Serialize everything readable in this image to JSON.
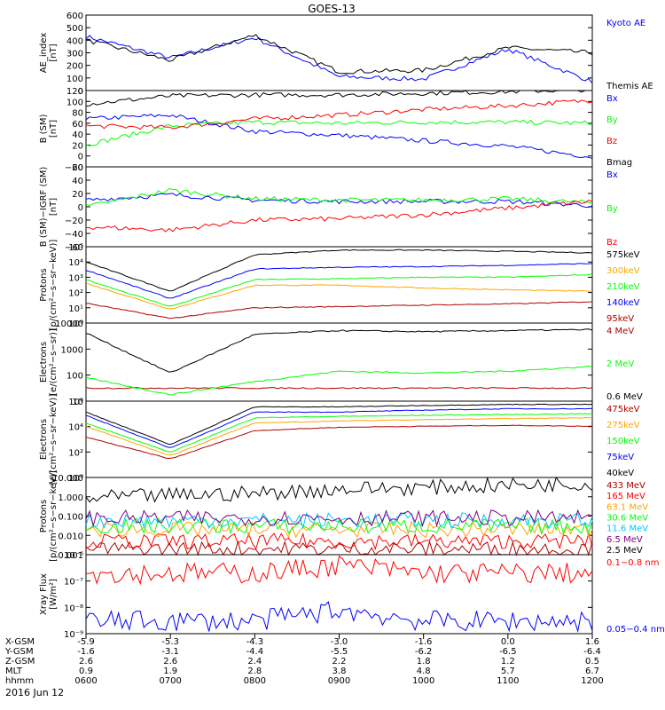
{
  "title": "GOES-13",
  "x_axis": {
    "rows": [
      {
        "label": "X-GSM",
        "values": [
          "-5.9",
          "-5.3",
          "-4.3",
          "-3.0",
          "-1.6",
          "0.0",
          "1.6"
        ]
      },
      {
        "label": "Y-GSM",
        "values": [
          "-1.6",
          "-3.1",
          "-4.4",
          "-5.5",
          "-6.2",
          "-6.5",
          "-6.4"
        ]
      },
      {
        "label": "Z-GSM",
        "values": [
          "2.6",
          "2.6",
          "2.4",
          "2.2",
          "1.8",
          "1.2",
          "0.5"
        ]
      },
      {
        "label": "MLT",
        "values": [
          "0.9",
          "1.9",
          "2.8",
          "3.8",
          "4.8",
          "5.7",
          "6.7"
        ]
      },
      {
        "label": "hhmm",
        "values": [
          "0600",
          "0700",
          "0800",
          "0900",
          "1000",
          "1100",
          "1200"
        ]
      }
    ],
    "date": "2016 Jun 12"
  },
  "colors": {
    "black": "#000000",
    "blue": "#0000ff",
    "green": "#00ff00",
    "red": "#ff0000",
    "darkred": "#b00000",
    "orange": "#ffa500",
    "cyan": "#00c8ff",
    "purple": "#800080"
  },
  "chart_data": [
    {
      "type": "line",
      "ylabel": "AE_index\n[nT]",
      "ylim": [
        0,
        600
      ],
      "yticks": [
        "0",
        "100",
        "200",
        "300",
        "400",
        "500",
        "600"
      ],
      "x": [
        "0600",
        "0700",
        "0800",
        "0900",
        "1000",
        "1100",
        "1200"
      ],
      "series": [
        {
          "name": "Kyoto AE",
          "color": "blue",
          "values": [
            430,
            260,
            420,
            110,
            90,
            330,
            70
          ]
        },
        {
          "name": "Themis AE",
          "color": "black",
          "values": [
            400,
            240,
            440,
            150,
            160,
            340,
            300
          ]
        }
      ]
    },
    {
      "type": "line",
      "ylabel": "B (SM)\n[nT]",
      "ylim": [
        -20,
        120
      ],
      "yticks": [
        "−20",
        "0",
        "20",
        "40",
        "60",
        "80",
        "100",
        "120"
      ],
      "x": [
        "0600",
        "0700",
        "0800",
        "0900",
        "1000",
        "1100",
        "1200"
      ],
      "series": [
        {
          "name": "Bx",
          "color": "blue",
          "values": [
            68,
            75,
            45,
            38,
            28,
            18,
            -2
          ]
        },
        {
          "name": "By",
          "color": "green",
          "values": [
            20,
            55,
            62,
            60,
            62,
            62,
            60
          ]
        },
        {
          "name": "Bz",
          "color": "red",
          "values": [
            55,
            52,
            68,
            75,
            85,
            92,
            102
          ]
        },
        {
          "name": "Bmag",
          "color": "black",
          "values": [
            95,
            110,
            112,
            112,
            115,
            118,
            122
          ]
        }
      ]
    },
    {
      "type": "line",
      "ylabel": "B (SM)−IGRF (SM)\n[nT]",
      "ylim": [
        -60,
        60
      ],
      "yticks": [
        "−60",
        "−40",
        "−20",
        "0",
        "20",
        "40",
        "60"
      ],
      "x": [
        "0600",
        "0700",
        "0800",
        "0900",
        "1000",
        "1100",
        "1200"
      ],
      "series": [
        {
          "name": "Bx",
          "color": "blue",
          "values": [
            10,
            18,
            10,
            8,
            8,
            8,
            2
          ]
        },
        {
          "name": "By",
          "color": "green",
          "values": [
            0,
            25,
            12,
            10,
            10,
            12,
            6
          ]
        },
        {
          "name": "Bz",
          "color": "red",
          "values": [
            -30,
            -35,
            -20,
            -18,
            -12,
            -2,
            8
          ]
        }
      ]
    },
    {
      "type": "line",
      "scale": "log",
      "ylabel": "Protons\n[p/(cm²−s−sr−keV)]",
      "ylim": [
        1,
        100000
      ],
      "yticks": [
        "10⁰",
        "10¹",
        "10²",
        "10³",
        "10⁴",
        "10⁵"
      ],
      "x": [
        "0600",
        "0700",
        "0800",
        "0900",
        "1000",
        "1100",
        "1200"
      ],
      "series": [
        {
          "name": "575keV",
          "color": "black",
          "values": [
            10000,
            120,
            30000,
            60000,
            60000,
            50000,
            40000
          ]
        },
        {
          "name": "300keV",
          "color": "orange",
          "values": [
            400,
            8,
            300,
            300,
            200,
            150,
            120
          ]
        },
        {
          "name": "210keV",
          "color": "green",
          "values": [
            700,
            12,
            700,
            800,
            1000,
            1000,
            1500
          ]
        },
        {
          "name": "140keV",
          "color": "blue",
          "values": [
            3000,
            40,
            3500,
            4500,
            5000,
            6000,
            8000
          ]
        },
        {
          "name": "95keV",
          "color": "darkred",
          "values": [
            20,
            2,
            10,
            12,
            15,
            18,
            25
          ]
        }
      ]
    },
    {
      "type": "line",
      "scale": "log",
      "ylabel": "Electrons\n[e/(cm²−s−sr)]",
      "ylim": [
        5,
        20000
      ],
      "yticks": [
        "10",
        "100",
        "1000",
        "10000"
      ],
      "x": [
        "0600",
        "0700",
        "0800",
        "0900",
        "1000",
        "1100",
        "1200"
      ],
      "series": [
        {
          "name": "4 MeV",
          "color": "darkred",
          "values": [
            20,
            20,
            20,
            20,
            20,
            20,
            20
          ]
        },
        {
          "name": "2 MeV",
          "color": "green",
          "values": [
            60,
            10,
            40,
            120,
            100,
            120,
            200
          ]
        },
        {
          "name": "0.6 MeV",
          "color": "black",
          "values": [
            7000,
            100,
            6000,
            9000,
            8000,
            9000,
            10000
          ]
        }
      ]
    },
    {
      "type": "line",
      "scale": "log",
      "ylabel": "Electrons\n[e/(cm²−s−sr−keV)]",
      "ylim": [
        1,
        10000000
      ],
      "yticks": [
        "10⁰",
        "10²",
        "10⁴",
        "10⁶"
      ],
      "x": [
        "0600",
        "0700",
        "0800",
        "0900",
        "1000",
        "1100",
        "1200"
      ],
      "series": [
        {
          "name": "475keV",
          "color": "darkred",
          "values": [
            5000,
            50,
            20000,
            40000,
            50000,
            60000,
            50000
          ]
        },
        {
          "name": "275keV",
          "color": "orange",
          "values": [
            50000,
            100,
            100000,
            150000,
            200000,
            250000,
            300000
          ]
        },
        {
          "name": "150keV",
          "color": "green",
          "values": [
            100000,
            200,
            300000,
            400000,
            500000,
            600000,
            700000
          ]
        },
        {
          "name": "75keV",
          "color": "blue",
          "values": [
            500000,
            500,
            1000000,
            1000000,
            1500000,
            2000000,
            2000000
          ]
        },
        {
          "name": "40keV",
          "color": "black",
          "values": [
            1000000,
            1000,
            3000000,
            3000000,
            4000000,
            5000000,
            5000000
          ]
        }
      ]
    },
    {
      "type": "line",
      "scale": "log",
      "ylabel": "Protons\n[p/(cm²−s−sr−keV)]",
      "ylim": [
        0.001,
        10
      ],
      "yticks": [
        "0.001",
        "0.010",
        "0.100",
        "1.000",
        "10.000"
      ],
      "x": [
        "0600",
        "0700",
        "0800",
        "0900",
        "1000",
        "1100",
        "1200"
      ],
      "series": [
        {
          "name": "433 MeV",
          "color": "darkred",
          "values": [
            0.002,
            0.002,
            0.002,
            0.002,
            0.002,
            0.002,
            0.002
          ]
        },
        {
          "name": "165 MeV",
          "color": "red",
          "values": [
            0.005,
            0.005,
            0.005,
            0.005,
            0.005,
            0.005,
            0.005
          ]
        },
        {
          "name": "63.1 MeV",
          "color": "orange",
          "values": [
            0.02,
            0.02,
            0.02,
            0.02,
            0.02,
            0.02,
            0.02
          ]
        },
        {
          "name": "30.6 MeV",
          "color": "green",
          "values": [
            0.03,
            0.03,
            0.03,
            0.03,
            0.03,
            0.03,
            0.03
          ]
        },
        {
          "name": "11.6 MeV",
          "color": "cyan",
          "values": [
            0.06,
            0.06,
            0.06,
            0.06,
            0.06,
            0.06,
            0.06
          ]
        },
        {
          "name": "6.5 MeV",
          "color": "purple",
          "values": [
            0.08,
            0.08,
            0.08,
            0.08,
            0.08,
            0.08,
            0.08
          ]
        },
        {
          "name": "2.5 MeV",
          "color": "black",
          "values": [
            0.8,
            1.2,
            1.5,
            2.5,
            3.0,
            4.0,
            5.0
          ]
        }
      ]
    },
    {
      "type": "line",
      "scale": "log",
      "ylabel": "Xray Flux\n[W/m²]",
      "ylim": [
        1e-09,
        1e-06
      ],
      "yticks": [
        "10⁻⁹",
        "10⁻⁸",
        "10⁻⁷",
        "10⁻⁶"
      ],
      "x": [
        "0600",
        "0700",
        "0800",
        "0900",
        "1000",
        "1100",
        "1200"
      ],
      "series": [
        {
          "name": "0.1−0.8 nm",
          "color": "red",
          "values": [
            2e-07,
            2e-07,
            2e-07,
            4e-07,
            2e-07,
            2e-07,
            2e-07
          ]
        },
        {
          "name": "0.05−0.4 nm",
          "color": "blue",
          "values": [
            3e-09,
            3e-09,
            3e-09,
            8e-09,
            3e-09,
            3e-09,
            3e-09
          ]
        }
      ]
    }
  ]
}
